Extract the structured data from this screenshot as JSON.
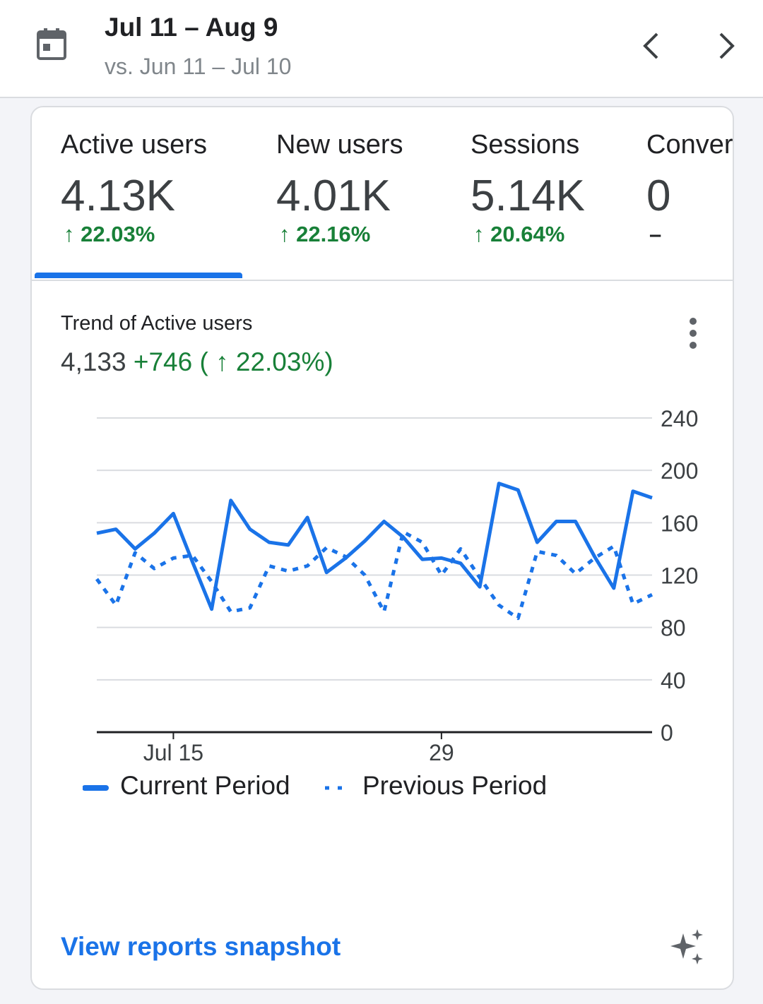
{
  "header": {
    "date_range": "Jul 11 – Aug 9",
    "comparison": "vs. Jun 11 – Jul 10",
    "icons": {
      "calendar": "calendar-icon",
      "prev": "chevron-left-icon",
      "next": "chevron-right-icon"
    }
  },
  "metrics": [
    {
      "label": "Active users",
      "value": "4.13K",
      "change": "↑ 22.03%",
      "selected": true
    },
    {
      "label": "New users",
      "value": "4.01K",
      "change": "↑ 22.16%",
      "selected": false
    },
    {
      "label": "Sessions",
      "value": "5.14K",
      "change": "↑ 20.64%",
      "selected": false
    },
    {
      "label": "Conver",
      "value": "0",
      "change": "–",
      "selected": false
    }
  ],
  "trend": {
    "title": "Trend of Active users",
    "total": "4,133",
    "delta": "+746 ( ↑ 22.03%)",
    "menu_icon": "more-vert-icon"
  },
  "chart_data": {
    "type": "line",
    "y_ticks": [
      "240",
      "200",
      "160",
      "120",
      "80",
      "40",
      "0"
    ],
    "ylim": [
      0,
      240
    ],
    "x_tick_labels": [
      {
        "day_index": 4,
        "label": "Jul 15"
      },
      {
        "day_index": 18,
        "label": "29"
      }
    ],
    "series": [
      {
        "name": "Current Period",
        "style": "solid",
        "color": "#1a73e8",
        "values": [
          152,
          155,
          140,
          152,
          167,
          130,
          94,
          177,
          155,
          145,
          143,
          164,
          122,
          133,
          146,
          161,
          149,
          132,
          133,
          129,
          111,
          190,
          185,
          145,
          161,
          161,
          134,
          110,
          184,
          179
        ]
      },
      {
        "name": "Previous Period",
        "style": "dotted",
        "color": "#1a73e8",
        "values": [
          117,
          97,
          137,
          125,
          133,
          135,
          115,
          92,
          95,
          127,
          123,
          127,
          141,
          134,
          120,
          92,
          153,
          145,
          120,
          140,
          118,
          97,
          87,
          138,
          135,
          121,
          133,
          142,
          98,
          105
        ]
      }
    ],
    "legend_position": "bottom",
    "grid": true
  },
  "footer": {
    "link_label": "View reports snapshot",
    "sparkle_icon": "sparkle-icon"
  }
}
